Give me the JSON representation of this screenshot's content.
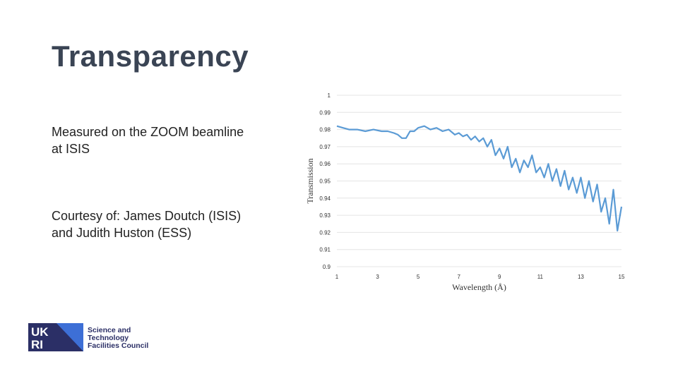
{
  "slide": {
    "title": "Transparency",
    "note1": [
      "Measured on the ZOOM beamline",
      "at ISIS"
    ],
    "note2": [
      "Courtesy of: James Doutch (ISIS)",
      "and Judith Huston (ESS)"
    ]
  },
  "logo": {
    "mark_text": [
      "UK",
      "RI"
    ],
    "lines": [
      "Science and",
      "Technology",
      "Facilities Council"
    ],
    "color_navy": "#2b2f66",
    "color_blue": "#3d6fd6"
  },
  "chart_data": {
    "type": "line",
    "xlabel": "Wavelength (Å)",
    "ylabel": "Transmission",
    "xlim": [
      1,
      15
    ],
    "ylim": [
      0.9,
      1.0
    ],
    "xticks": [
      "1",
      "3",
      "5",
      "7",
      "9",
      "11",
      "13",
      "15"
    ],
    "yticks": [
      "0.9",
      "0.91",
      "0.92",
      "0.93",
      "0.94",
      "0.95",
      "0.96",
      "0.97",
      "0.98",
      "0.99",
      "1"
    ],
    "grid": true,
    "line_color": "#5b9bd5",
    "series": [
      {
        "x": [
          1.0,
          1.3,
          1.6,
          2.0,
          2.4,
          2.8,
          3.2,
          3.5,
          3.8,
          4.0,
          4.2,
          4.4,
          4.6,
          4.8,
          5.0,
          5.3,
          5.6,
          5.9,
          6.2,
          6.5,
          6.8,
          7.0,
          7.2,
          7.4,
          7.6,
          7.8,
          8.0,
          8.2,
          8.4,
          8.6,
          8.8,
          9.0,
          9.2,
          9.4,
          9.6,
          9.8,
          10.0,
          10.2,
          10.4,
          10.6,
          10.8,
          11.0,
          11.2,
          11.4,
          11.6,
          11.8,
          12.0,
          12.2,
          12.4,
          12.6,
          12.8,
          13.0,
          13.2,
          13.4,
          13.6,
          13.8,
          14.0,
          14.2,
          14.4,
          14.6,
          14.8,
          15.0
        ],
        "y": [
          0.982,
          0.981,
          0.98,
          0.98,
          0.979,
          0.98,
          0.979,
          0.979,
          0.978,
          0.977,
          0.975,
          0.975,
          0.979,
          0.979,
          0.981,
          0.982,
          0.98,
          0.981,
          0.979,
          0.98,
          0.977,
          0.978,
          0.976,
          0.977,
          0.974,
          0.976,
          0.973,
          0.975,
          0.97,
          0.974,
          0.965,
          0.969,
          0.963,
          0.97,
          0.958,
          0.963,
          0.955,
          0.962,
          0.958,
          0.965,
          0.955,
          0.958,
          0.952,
          0.96,
          0.95,
          0.957,
          0.947,
          0.956,
          0.945,
          0.952,
          0.943,
          0.952,
          0.94,
          0.95,
          0.938,
          0.948,
          0.932,
          0.94,
          0.925,
          0.945,
          0.921,
          0.935
        ]
      }
    ]
  }
}
